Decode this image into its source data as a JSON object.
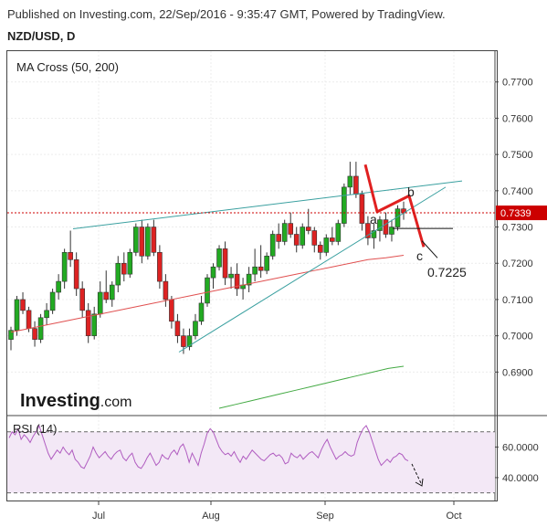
{
  "header": {
    "published": "Published on Investing.com, 22/Sep/2016 - 9:35:47 GMT, Powered by TradingView.",
    "symbol": "NZD/USD, D"
  },
  "brand": {
    "logo_text_bold": "Investing",
    "logo_text_light": ".com"
  },
  "chart_data": [
    {
      "type": "candlestick",
      "title": "MA Cross (50, 200)",
      "y_ticks": [
        "0.7700",
        "0.7600",
        "0.7500",
        "0.7400",
        "0.7300",
        "0.7200",
        "0.7100",
        "0.7000",
        "0.6900"
      ],
      "ylim": [
        0.6785,
        0.7785
      ],
      "x_ticks": [
        "Jul",
        "Aug",
        "Sep",
        "Oct"
      ],
      "last_price": {
        "label": "0.7339",
        "value": 0.7339,
        "color": "#cc0000"
      },
      "up_color": "#22aa22",
      "down_color": "#dd2222",
      "candles": [
        [
          0.699,
          0.7025,
          0.696,
          0.7015
        ],
        [
          0.7015,
          0.711,
          0.7,
          0.71
        ],
        [
          0.71,
          0.712,
          0.706,
          0.707
        ],
        [
          0.707,
          0.708,
          0.701,
          0.702
        ],
        [
          0.702,
          0.704,
          0.697,
          0.699
        ],
        [
          0.699,
          0.706,
          0.698,
          0.705
        ],
        [
          0.705,
          0.709,
          0.703,
          0.707
        ],
        [
          0.707,
          0.713,
          0.706,
          0.712
        ],
        [
          0.712,
          0.717,
          0.71,
          0.715
        ],
        [
          0.715,
          0.724,
          0.713,
          0.723
        ],
        [
          0.723,
          0.729,
          0.719,
          0.721
        ],
        [
          0.721,
          0.723,
          0.711,
          0.713
        ],
        [
          0.713,
          0.715,
          0.705,
          0.707
        ],
        [
          0.707,
          0.709,
          0.698,
          0.7
        ],
        [
          0.7,
          0.708,
          0.699,
          0.706
        ],
        [
          0.706,
          0.715,
          0.705,
          0.712
        ],
        [
          0.712,
          0.718,
          0.709,
          0.71
        ],
        [
          0.71,
          0.715,
          0.708,
          0.714
        ],
        [
          0.714,
          0.722,
          0.712,
          0.72
        ],
        [
          0.72,
          0.723,
          0.715,
          0.717
        ],
        [
          0.717,
          0.724,
          0.716,
          0.723
        ],
        [
          0.723,
          0.731,
          0.722,
          0.73
        ],
        [
          0.73,
          0.732,
          0.72,
          0.722
        ],
        [
          0.722,
          0.731,
          0.721,
          0.73
        ],
        [
          0.73,
          0.732,
          0.722,
          0.723
        ],
        [
          0.723,
          0.725,
          0.713,
          0.715
        ],
        [
          0.715,
          0.717,
          0.708,
          0.71
        ],
        [
          0.71,
          0.711,
          0.702,
          0.704
        ],
        [
          0.704,
          0.706,
          0.698,
          0.7
        ],
        [
          0.7,
          0.702,
          0.695,
          0.697
        ],
        [
          0.697,
          0.702,
          0.696,
          0.7
        ],
        [
          0.7,
          0.706,
          0.699,
          0.704
        ],
        [
          0.704,
          0.711,
          0.703,
          0.709
        ],
        [
          0.709,
          0.717,
          0.708,
          0.716
        ],
        [
          0.716,
          0.72,
          0.713,
          0.719
        ],
        [
          0.719,
          0.725,
          0.718,
          0.724
        ],
        [
          0.724,
          0.726,
          0.714,
          0.716
        ],
        [
          0.716,
          0.719,
          0.713,
          0.717
        ],
        [
          0.717,
          0.72,
          0.711,
          0.713
        ],
        [
          0.713,
          0.716,
          0.71,
          0.714
        ],
        [
          0.714,
          0.719,
          0.712,
          0.717
        ],
        [
          0.717,
          0.724,
          0.715,
          0.719
        ],
        [
          0.719,
          0.725,
          0.716,
          0.718
        ],
        [
          0.718,
          0.723,
          0.717,
          0.722
        ],
        [
          0.722,
          0.729,
          0.721,
          0.728
        ],
        [
          0.728,
          0.731,
          0.724,
          0.726
        ],
        [
          0.726,
          0.732,
          0.725,
          0.731
        ],
        [
          0.731,
          0.734,
          0.727,
          0.728
        ],
        [
          0.728,
          0.73,
          0.723,
          0.725
        ],
        [
          0.725,
          0.731,
          0.724,
          0.73
        ],
        [
          0.73,
          0.735,
          0.728,
          0.729
        ],
        [
          0.729,
          0.73,
          0.723,
          0.725
        ],
        [
          0.725,
          0.726,
          0.721,
          0.723
        ],
        [
          0.723,
          0.728,
          0.722,
          0.727
        ],
        [
          0.727,
          0.73,
          0.725,
          0.726
        ],
        [
          0.726,
          0.732,
          0.725,
          0.731
        ],
        [
          0.731,
          0.742,
          0.73,
          0.741
        ],
        [
          0.741,
          0.748,
          0.739,
          0.744
        ],
        [
          0.744,
          0.748,
          0.738,
          0.739
        ],
        [
          0.739,
          0.74,
          0.729,
          0.731
        ],
        [
          0.731,
          0.733,
          0.725,
          0.727
        ],
        [
          0.727,
          0.731,
          0.724,
          0.729
        ],
        [
          0.729,
          0.733,
          0.726,
          0.732
        ],
        [
          0.732,
          0.734,
          0.727,
          0.728
        ],
        [
          0.728,
          0.732,
          0.726,
          0.73
        ],
        [
          0.73,
          0.736,
          0.729,
          0.735
        ],
        [
          0.735,
          0.737,
          0.732,
          0.7339
        ]
      ],
      "ma_50": [
        0.701,
        0.702,
        0.703,
        0.704,
        0.705,
        0.706,
        0.707,
        0.708,
        0.709,
        0.71,
        0.711,
        0.712,
        0.713,
        0.714,
        0.715,
        0.716,
        0.717,
        0.718,
        0.719,
        0.72,
        0.721,
        0.7215,
        0.7222
      ],
      "ma_200": [
        0.68,
        0.681,
        0.682,
        0.683,
        0.684,
        0.685,
        0.686,
        0.687,
        0.688,
        0.689,
        0.69,
        0.691,
        0.6916
      ],
      "annotations": {
        "wave_a": "a",
        "wave_b": "b",
        "wave_c": "c",
        "target": "0.7225"
      }
    },
    {
      "type": "line",
      "title": "RSI (14)",
      "y_ticks": [
        "60.0000",
        "40.0000"
      ],
      "ylim": [
        25,
        80
      ],
      "bands": [
        30,
        70
      ],
      "values": [
        66,
        70,
        68,
        72,
        65,
        68,
        66,
        63,
        67,
        70,
        74,
        68,
        62,
        56,
        52,
        55,
        58,
        56,
        60,
        57,
        55,
        58,
        52,
        50,
        47,
        46,
        50,
        54,
        60,
        56,
        53,
        55,
        57,
        54,
        52,
        55,
        57,
        58,
        53,
        51,
        54,
        56,
        50,
        47,
        46,
        49,
        53,
        56,
        52,
        48,
        50,
        55,
        53,
        52,
        56,
        58,
        55,
        60,
        62,
        57,
        50,
        56,
        52,
        48,
        56,
        62,
        69,
        72,
        70,
        65,
        60,
        57,
        55,
        56,
        54,
        57,
        53,
        50,
        54,
        52,
        55,
        58,
        56,
        54,
        52,
        51,
        53,
        55,
        56,
        54,
        55,
        53,
        49,
        50,
        56,
        54,
        53,
        55,
        52,
        54,
        56,
        57,
        55,
        53,
        58,
        62,
        65,
        60,
        56,
        52,
        54,
        55,
        57,
        55,
        54,
        55,
        63,
        68,
        72,
        74,
        70,
        64,
        58,
        52,
        48,
        50,
        52,
        50,
        53,
        54,
        56,
        55,
        52,
        51
      ]
    }
  ]
}
